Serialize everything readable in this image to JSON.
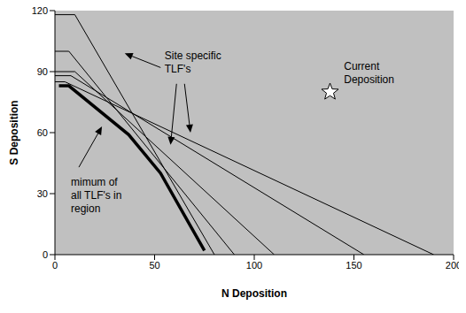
{
  "chart_data": {
    "type": "line",
    "xlabel": "N Deposition",
    "ylabel": "S Deposition",
    "xlim": [
      0,
      200
    ],
    "ylim": [
      0,
      120
    ],
    "xticks": [
      0,
      50,
      100,
      150,
      200
    ],
    "yticks": [
      0,
      30,
      60,
      90,
      120
    ],
    "grid": false,
    "series": [
      {
        "type": "line",
        "color": "#000000",
        "x": [
          0,
          10,
          80
        ],
        "values": [
          118,
          118,
          0
        ]
      },
      {
        "type": "line",
        "color": "#000000",
        "x": [
          0,
          7,
          90
        ],
        "values": [
          100,
          100,
          0
        ]
      },
      {
        "type": "line",
        "color": "#000000",
        "x": [
          0,
          10,
          110
        ],
        "values": [
          90,
          90,
          0
        ]
      },
      {
        "type": "line",
        "color": "#000000",
        "x": [
          0,
          8,
          155
        ],
        "values": [
          88,
          88,
          0
        ]
      },
      {
        "type": "line",
        "color": "#000000",
        "x": [
          0,
          5,
          190
        ],
        "values": [
          85,
          85,
          0
        ]
      },
      {
        "type": "line",
        "color": "#000000",
        "line_style": "thick",
        "x": [
          2,
          7,
          37,
          53,
          75
        ],
        "values": [
          83,
          83,
          59,
          40,
          2
        ]
      },
      {
        "type": "scatter",
        "marker": "star",
        "color": "#ffffff",
        "x": [
          138
        ],
        "values": [
          80
        ]
      }
    ],
    "annotations": [
      {
        "text": [
          "Site specific",
          "TLF's"
        ],
        "x": 55,
        "y": 96,
        "arrows": [
          {
            "from": [
              53,
              92
            ],
            "to": [
              35,
              99
            ]
          },
          {
            "from": [
              61,
              84
            ],
            "to": [
              58,
              54
            ]
          },
          {
            "from": [
              65,
              84
            ],
            "to": [
              68,
              60
            ]
          }
        ]
      },
      {
        "text": [
          "Current",
          "Deposition"
        ],
        "x": 145,
        "y": 91,
        "arrows": []
      },
      {
        "text": [
          "mimum of",
          "all TLF's in",
          "region"
        ],
        "x": 8,
        "y": 34,
        "arrows": [
          {
            "from": [
              12,
              43
            ],
            "to": [
              23.6,
              63
            ]
          }
        ]
      }
    ]
  }
}
